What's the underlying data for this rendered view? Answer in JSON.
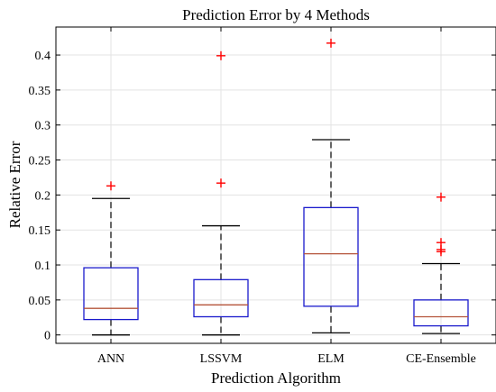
{
  "chart_data": {
    "type": "box",
    "title": "Prediction Error by 4 Methods",
    "xlabel": "Prediction Algorithm",
    "ylabel": "Relative Error",
    "ylim": [
      -0.012,
      0.44
    ],
    "yticks": [
      0,
      0.05,
      0.1,
      0.15,
      0.2,
      0.25,
      0.3,
      0.35,
      0.4
    ],
    "ytick_labels": [
      "0",
      "0.05",
      "0.1",
      "0.15",
      "0.2",
      "0.25",
      "0.3",
      "0.35",
      "0.4"
    ],
    "grid": true,
    "categories": [
      "ANN",
      "LSSVM",
      "ELM",
      "CE-Ensemble"
    ],
    "boxes": [
      {
        "name": "ANN",
        "whisker_low": 0.0,
        "q1": 0.022,
        "median": 0.038,
        "q3": 0.096,
        "whisker_high": 0.195,
        "outliers": [
          0.213
        ]
      },
      {
        "name": "LSSVM",
        "whisker_low": 0.0,
        "q1": 0.026,
        "median": 0.043,
        "q3": 0.079,
        "whisker_high": 0.156,
        "outliers": [
          0.217,
          0.399
        ]
      },
      {
        "name": "ELM",
        "whisker_low": 0.003,
        "q1": 0.041,
        "median": 0.116,
        "q3": 0.182,
        "whisker_high": 0.279,
        "outliers": [
          0.417
        ]
      },
      {
        "name": "CE-Ensemble",
        "whisker_low": 0.002,
        "q1": 0.013,
        "median": 0.026,
        "q3": 0.05,
        "whisker_high": 0.102,
        "outliers": [
          0.119,
          0.122,
          0.132,
          0.197
        ]
      }
    ],
    "colors": {
      "box": "#1a1acc",
      "median": "#b5543a",
      "outlier": "#ff0000",
      "grid": "#e3e3e3"
    }
  }
}
